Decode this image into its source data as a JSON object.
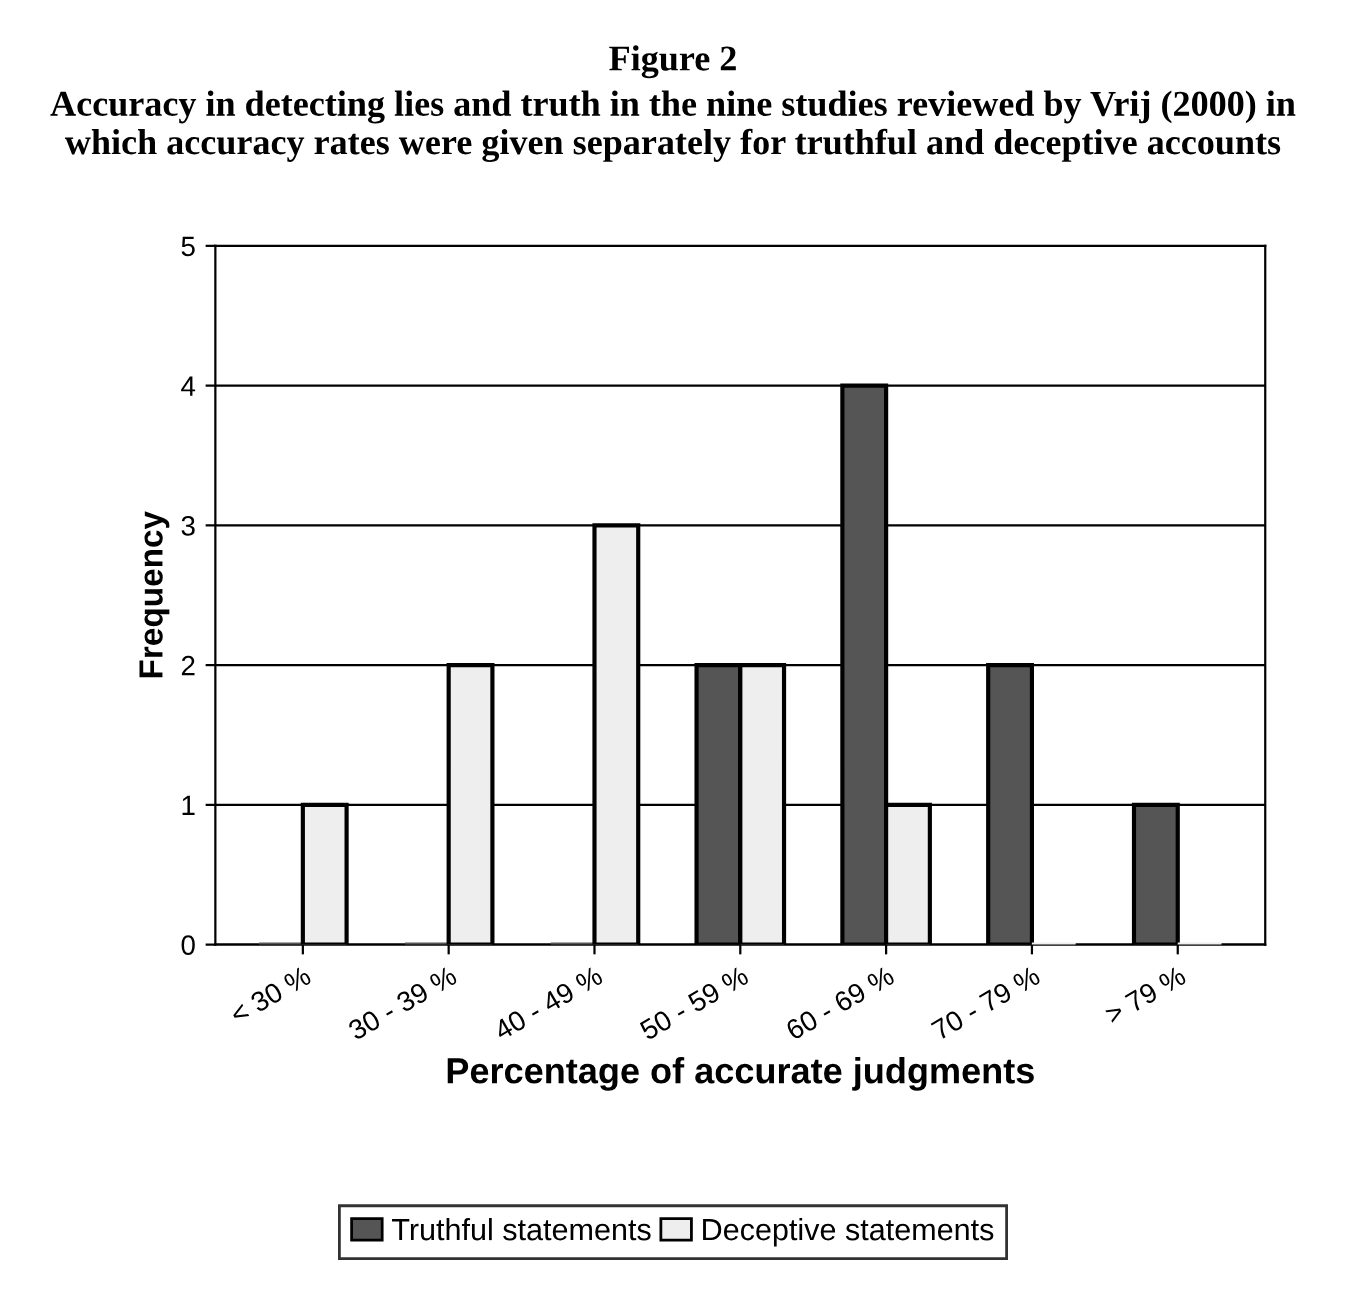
{
  "chart_data": {
    "type": "bar",
    "title": "Figure 2",
    "subtitle": "Accuracy in detecting lies and truth in the nine studies reviewed by Vrij (2000) in which accuracy rates were given separately for truthful and deceptive accounts",
    "xlabel": "Percentage of accurate judgments",
    "ylabel": "Frequency",
    "categories": [
      "< 30 %",
      "30 - 39 %",
      "40 - 49 %",
      "50 - 59 %",
      "60 - 69 %",
      "70 - 79 %",
      "> 79 %"
    ],
    "series": [
      {
        "name": "Truthful statements",
        "color": "#555555",
        "values": [
          0,
          0,
          0,
          2,
          4,
          2,
          1
        ]
      },
      {
        "name": "Deceptive statements",
        "color": "#eeeeee",
        "values": [
          1,
          2,
          3,
          2,
          1,
          0,
          0
        ]
      }
    ],
    "ylim": [
      0,
      5
    ],
    "yticks": [
      0,
      1,
      2,
      3,
      4,
      5
    ],
    "grid": "y",
    "legend": "bottom"
  }
}
